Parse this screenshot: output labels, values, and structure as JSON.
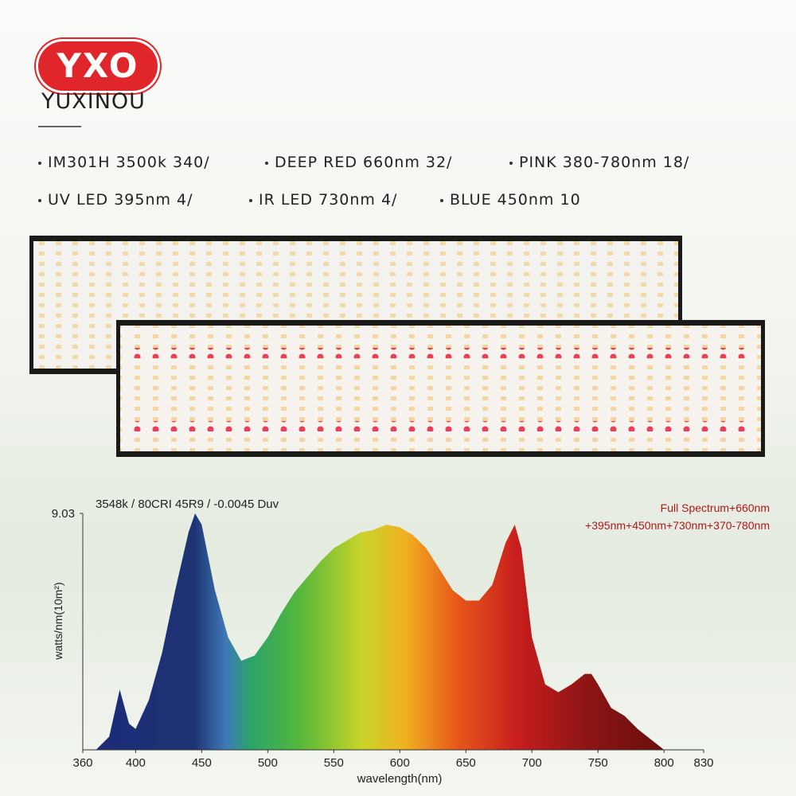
{
  "header": {
    "logo": "YXO",
    "brand": "YUXINOU"
  },
  "features": [
    "IM301H 3500k 340/",
    "DEEP RED 660nm 32/",
    "PINK 380-780nm 18/",
    "UV LED 395nm 4/",
    "IR LED 730nm 4/",
    "BLUE 450nm 10"
  ],
  "chart_data": {
    "type": "area",
    "annotation": "3548k / 80CRI 45R9 / -0.0045 Duv",
    "legend": [
      "Full Spectrum+660nm",
      "+395nm+450nm+730nm+370-780nm"
    ],
    "x_label": "wavelength(nm)",
    "y_label": "watts/nm(10m²)",
    "x": [
      370,
      380,
      388,
      395,
      400,
      410,
      420,
      430,
      440,
      445,
      450,
      460,
      470,
      480,
      490,
      500,
      510,
      520,
      530,
      540,
      550,
      560,
      570,
      580,
      590,
      600,
      610,
      620,
      630,
      640,
      650,
      660,
      670,
      680,
      687,
      692,
      700,
      710,
      720,
      730,
      740,
      745,
      750,
      760,
      770,
      780,
      790,
      800
    ],
    "values": [
      0,
      0.5,
      2.3,
      1.0,
      0.8,
      1.9,
      3.7,
      6.1,
      8.3,
      9.03,
      8.6,
      6.1,
      4.3,
      3.4,
      3.6,
      4.3,
      5.2,
      6.0,
      6.6,
      7.2,
      7.7,
      8.0,
      8.3,
      8.4,
      8.6,
      8.5,
      8.2,
      7.7,
      6.9,
      6.1,
      5.7,
      5.7,
      6.3,
      7.9,
      8.6,
      7.7,
      4.3,
      2.5,
      2.2,
      2.5,
      2.9,
      2.9,
      2.5,
      1.6,
      1.3,
      0.8,
      0.4,
      0
    ],
    "xlim": [
      360,
      830
    ],
    "ylim": [
      0,
      9.03
    ],
    "xticks": [
      360,
      400,
      450,
      500,
      550,
      600,
      650,
      700,
      750,
      800,
      830
    ],
    "yticks": [
      9.03
    ]
  }
}
